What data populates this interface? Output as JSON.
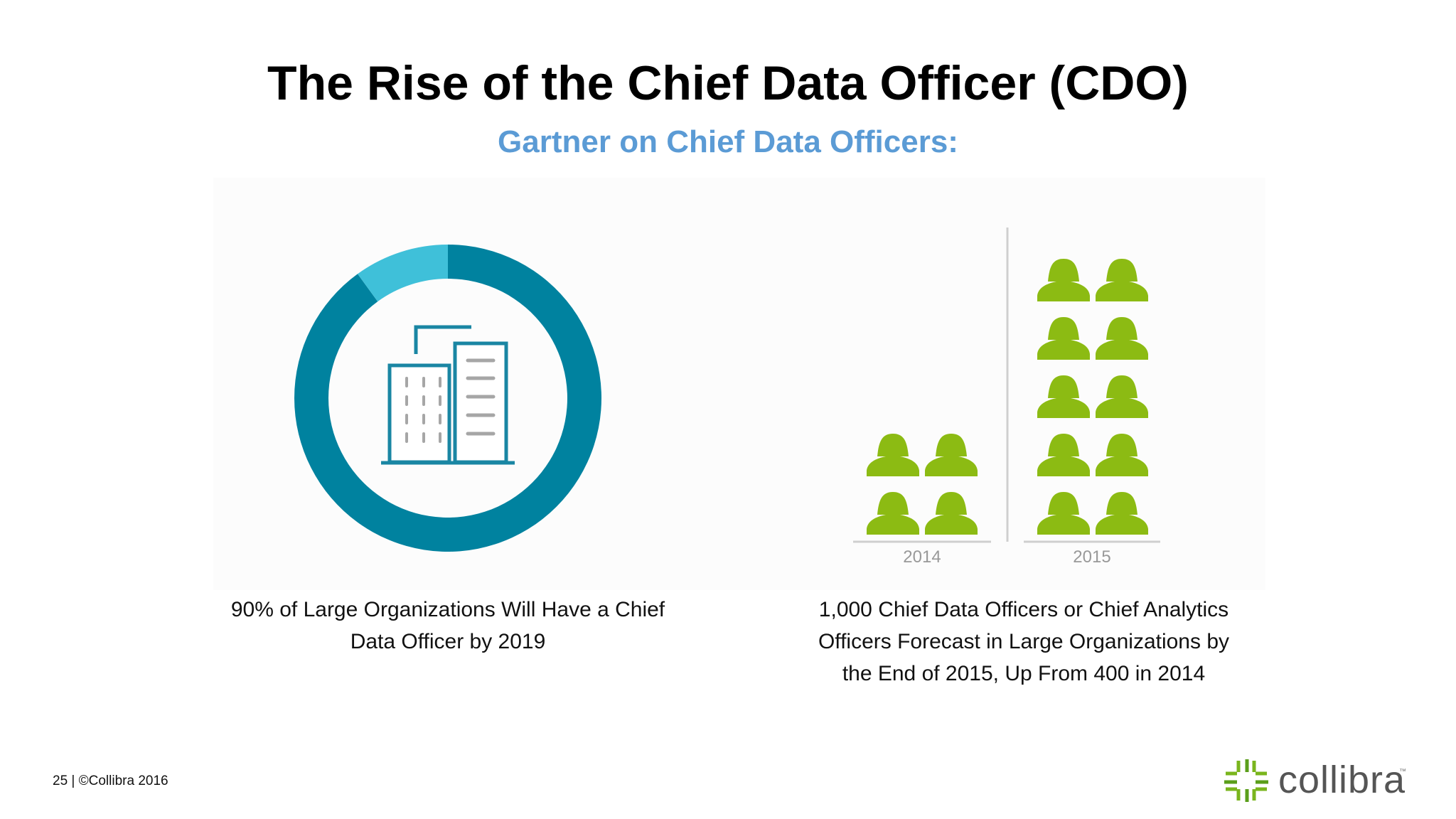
{
  "slide": {
    "title": "The Rise of the Chief Data Officer (CDO)",
    "subtitle": "Gartner on Chief Data Officers:",
    "footer": "25  |  ©Collibra 2016",
    "logo_text": "collibra",
    "logo_tm": "™"
  },
  "colors": {
    "title": "#000000",
    "subtitle": "#5b9bd5",
    "donut_main": "#00829f",
    "donut_rest": "#3fc0d9",
    "building": "#1a86a3",
    "building_detail": "#a6a6a6",
    "person": "#8cbb13",
    "logo_green": "#7ab51d"
  },
  "chart_data": [
    {
      "type": "pie",
      "style": "donut",
      "values": [
        90,
        10
      ],
      "labels": [
        "",
        ""
      ],
      "center_icon": "office-building-icon",
      "caption_lines": [
        "90% of Large Organizations Will Have a Chief",
        "Data Officer by 2019"
      ]
    },
    {
      "type": "bar",
      "style": "pictogram",
      "icon": "female-person-icon",
      "categories": [
        "2014",
        "2015"
      ],
      "values": [
        400,
        1000
      ],
      "icons_per_category": [
        4,
        10
      ],
      "icons_per_row": 2,
      "caption_lines": [
        "1,000 Chief Data Officers or Chief Analytics",
        "Officers Forecast in Large Organizations by",
        "the End of 2015, Up From 400 in 2014"
      ]
    }
  ]
}
